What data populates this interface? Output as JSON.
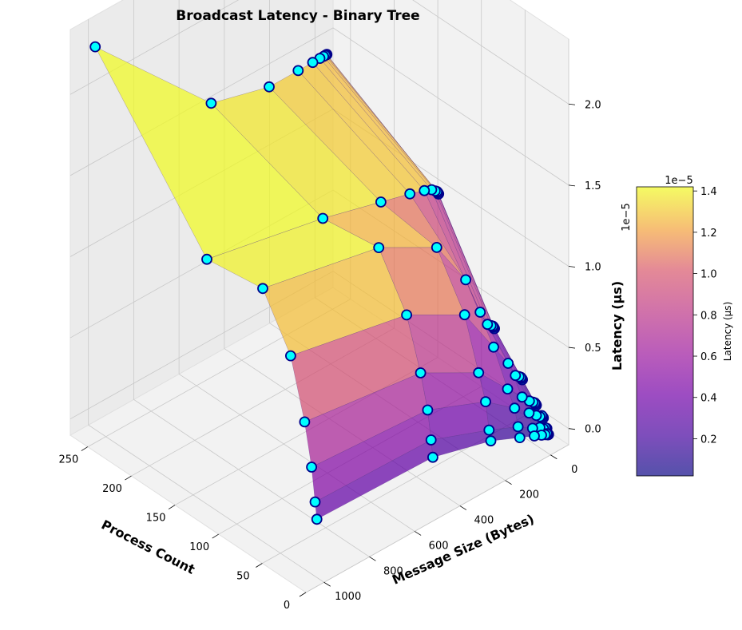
{
  "chart_data": {
    "type": "surface3d",
    "title": "Broadcast Latency - Binary Tree",
    "xlabel": "Process Count",
    "ylabel": "Message Size (Bytes)",
    "zlabel": "Latency (μs)",
    "z_offset_label": "1e−5",
    "x_ticks": [
      "0",
      "50",
      "100",
      "150",
      "200",
      "250"
    ],
    "x_tick_values": [
      0,
      50,
      100,
      150,
      200,
      250
    ],
    "y_ticks": [
      "0",
      "200",
      "400",
      "600",
      "800",
      "1000"
    ],
    "y_tick_values": [
      0,
      200,
      400,
      600,
      800,
      1000
    ],
    "z_ticks": [
      "0.0",
      "0.5",
      "1.0",
      "1.5",
      "2.0"
    ],
    "z_tick_values": [
      0.0,
      0.5,
      1.0,
      1.5,
      2.0
    ],
    "xlim": [
      0,
      270
    ],
    "ylim": [
      -80,
      1080
    ],
    "zlim": [
      -0.1,
      2.4
    ],
    "process_counts": [
      2,
      4,
      8,
      16,
      32,
      64,
      128,
      256
    ],
    "message_sizes": [
      1,
      2,
      4,
      8,
      16,
      32,
      64,
      128,
      256,
      512,
      1024
    ],
    "latency_grid_1e5": [
      [
        0.02,
        0.02,
        0.02,
        0.03,
        0.03,
        0.04,
        0.06,
        0.1,
        0.18,
        0.28,
        0.3
      ],
      [
        0.05,
        0.05,
        0.05,
        0.06,
        0.06,
        0.08,
        0.1,
        0.16,
        0.24,
        0.38,
        0.4
      ],
      [
        0.1,
        0.1,
        0.11,
        0.12,
        0.12,
        0.14,
        0.18,
        0.26,
        0.4,
        0.55,
        0.6
      ],
      [
        0.15,
        0.15,
        0.16,
        0.17,
        0.18,
        0.2,
        0.25,
        0.35,
        0.55,
        0.75,
        0.85
      ],
      [
        0.25,
        0.25,
        0.26,
        0.27,
        0.28,
        0.3,
        0.4,
        0.55,
        0.85,
        1.05,
        1.2
      ],
      [
        0.45,
        0.45,
        0.46,
        0.47,
        0.48,
        0.5,
        0.6,
        0.85,
        1.15,
        1.35,
        1.5
      ],
      [
        1.05,
        1.05,
        1.06,
        1.07,
        1.08,
        1.1,
        1.12,
        1.15,
        1.2,
        1.3,
        1.45
      ],
      [
        1.45,
        1.45,
        1.45,
        1.45,
        1.45,
        1.45,
        1.45,
        1.45,
        1.45,
        1.55,
        2.3
      ]
    ],
    "colorbar": {
      "label": "Latency (μs)",
      "offset_label": "1e−5",
      "ticks": [
        "0.2",
        "0.4",
        "0.6",
        "0.8",
        "1.0",
        "1.2",
        "1.4"
      ],
      "tick_values": [
        0.2,
        0.4,
        0.6,
        0.8,
        1.0,
        1.2,
        1.4
      ],
      "range": [
        0.02,
        1.42
      ],
      "colormap": "plasma"
    },
    "marker_color": "#00ffff",
    "marker_edge": "#00008b",
    "grid": true
  }
}
